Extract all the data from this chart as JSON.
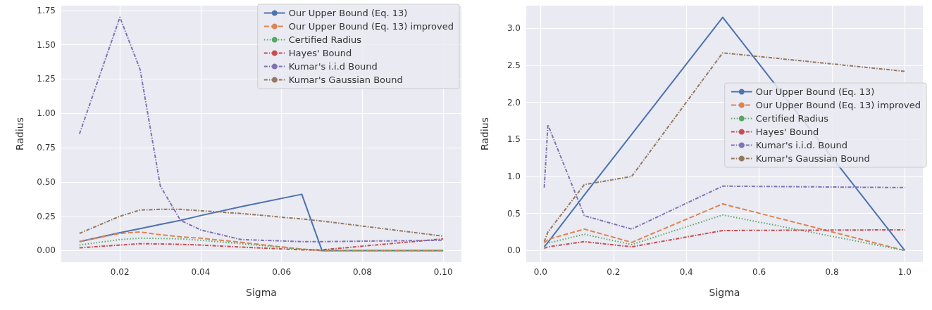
{
  "chart_data": [
    {
      "type": "line",
      "xlabel": "Sigma",
      "ylabel": "Radius",
      "grid": true,
      "legend": "top right",
      "x": [
        0.01,
        0.02,
        0.025,
        0.03,
        0.035,
        0.04,
        0.05,
        0.065,
        0.07,
        0.1
      ],
      "xlim": [
        0.0055,
        0.1045
      ],
      "xticks": [
        0.02,
        0.04,
        0.06,
        0.08,
        {
          "value": 0.1,
          "label": "0.10"
        }
      ],
      "ylim": [
        -0.085,
        1.785
      ],
      "yticks": [
        {
          "value": 0,
          "label": "0.00"
        },
        0.25,
        {
          "value": 0.5,
          "label": "0.50"
        },
        0.75,
        {
          "value": 1,
          "label": "1.00"
        },
        1.25,
        {
          "value": 1.5,
          "label": "1.50"
        },
        1.75
      ],
      "series": [
        {
          "name": "Our Upper Bound (Eq. 13)",
          "color": "#4c72b0",
          "line_style": "solid",
          "values": [
            0.065,
            0.13,
            0.16,
            0.19,
            0.22,
            0.255,
            0.32,
            0.41,
            0.0,
            0.0
          ]
        },
        {
          "name": "Our Upper Bound (Eq. 13) improved",
          "color": "#dd8452",
          "line_style": "dashed",
          "values": [
            0.065,
            0.125,
            0.135,
            0.115,
            0.1,
            0.09,
            0.06,
            0.01,
            0.0,
            0.0
          ]
        },
        {
          "name": "Certified Radius",
          "color": "#55a868",
          "line_style": "dotted",
          "values": [
            0.04,
            0.08,
            0.09,
            0.088,
            0.085,
            0.075,
            0.05,
            0.01,
            0.0,
            0.0
          ]
        },
        {
          "name": "Hayes' Bound",
          "color": "#c44e52",
          "line_style": "dashdot",
          "values": [
            0.02,
            0.04,
            0.05,
            0.048,
            0.045,
            0.04,
            0.025,
            0.005,
            0.005,
            0.085
          ]
        },
        {
          "name": "Kumar's i.i.d Bound",
          "color": "#8172b3",
          "line_style": "dashdot",
          "values": [
            0.85,
            1.7,
            1.32,
            0.47,
            0.22,
            0.15,
            0.08,
            0.065,
            0.065,
            0.075
          ]
        },
        {
          "name": "Kumar's Gaussian Bound",
          "color": "#937860",
          "line_style": "dashdot",
          "values": [
            0.125,
            0.25,
            0.295,
            0.3,
            0.3,
            0.29,
            0.27,
            0.23,
            0.215,
            0.105
          ]
        }
      ]
    },
    {
      "type": "line",
      "xlabel": "Sigma",
      "ylabel": "Radius",
      "grid": true,
      "legend": "right",
      "x": [
        0.01,
        0.02,
        0.12,
        0.25,
        0.5,
        1.0
      ],
      "xlim": [
        -0.0395,
        1.0495
      ],
      "xticks": [
        {
          "value": 0,
          "label": "0.0"
        },
        0.2,
        0.4,
        0.6,
        0.8,
        {
          "value": 1,
          "label": "1.0"
        }
      ],
      "ylim": [
        -0.1575,
        3.3075
      ],
      "yticks": [
        {
          "value": 0,
          "label": "0.0"
        },
        0.5,
        {
          "value": 1,
          "label": "1.0"
        },
        1.5,
        {
          "value": 2,
          "label": "2.0"
        },
        2.5,
        {
          "value": 3,
          "label": "3.0"
        }
      ],
      "series": [
        {
          "name": "Our Upper Bound (Eq. 13)",
          "color": "#4c72b0",
          "line_style": "solid",
          "values": [
            0.05,
            0.11,
            0.75,
            1.57,
            3.15,
            0.0
          ]
        },
        {
          "name": "Our Upper Bound (Eq. 13) improved",
          "color": "#dd8452",
          "line_style": "dashed",
          "values": [
            0.1,
            0.15,
            0.29,
            0.11,
            0.63,
            0.0
          ]
        },
        {
          "name": "Certified Radius",
          "color": "#55a868",
          "line_style": "dotted",
          "values": [
            0.06,
            0.1,
            0.22,
            0.08,
            0.48,
            0.0
          ]
        },
        {
          "name": "Hayes' Bound",
          "color": "#c44e52",
          "line_style": "dashdot",
          "values": [
            0.03,
            0.05,
            0.12,
            0.05,
            0.27,
            0.28
          ]
        },
        {
          "name": "Kumar's i.i.d. Bound",
          "color": "#8172b3",
          "line_style": "dashdot",
          "values": [
            0.85,
            1.7,
            0.47,
            0.29,
            0.87,
            0.85
          ]
        },
        {
          "name": "Kumar's Gaussian Bound",
          "color": "#937860",
          "line_style": "dashdot",
          "values": [
            0.12,
            0.25,
            0.89,
            1.0,
            2.67,
            2.42
          ]
        }
      ]
    }
  ]
}
